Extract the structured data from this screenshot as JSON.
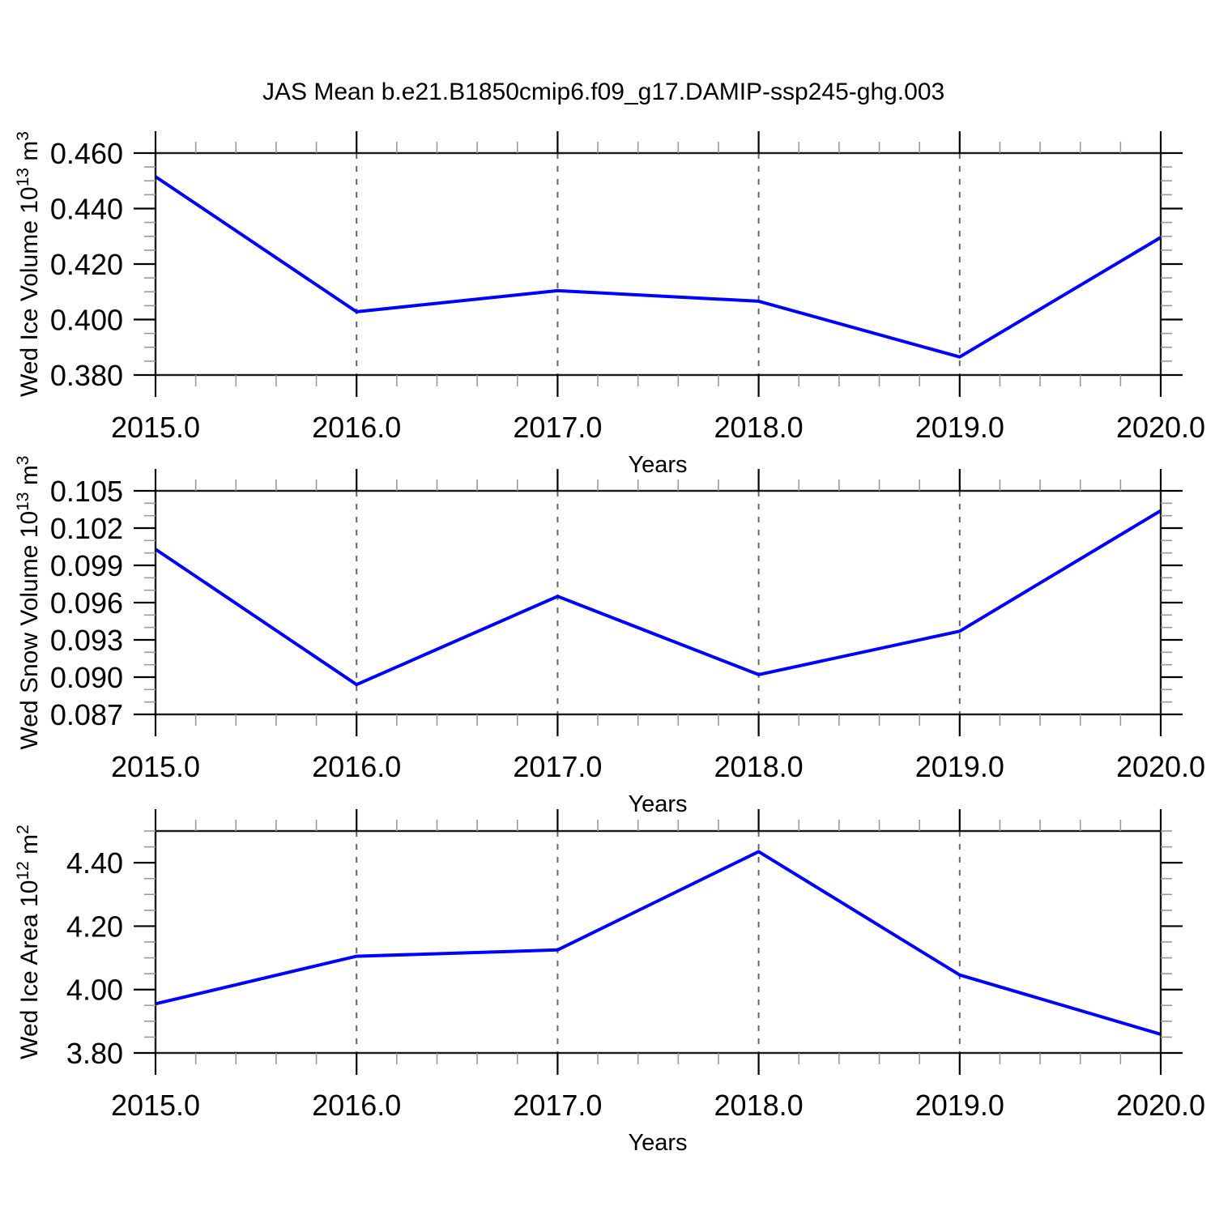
{
  "title": "JAS Mean b.e21.B1850cmip6.f09_g17.DAMIP-ssp245-ghg.003",
  "colors": {
    "line": "#0000ff",
    "frame": "#1a1a1a",
    "major_tick": "#000000",
    "minor_tick": "#999999",
    "grid": "#666666",
    "text": "#000000",
    "background": "#ffffff"
  },
  "x_axis": {
    "label": "Years",
    "lim": [
      2015.0,
      2020.0
    ],
    "tick_labels": [
      "2015.0",
      "2016.0",
      "2017.0",
      "2018.0",
      "2019.0",
      "2020.0"
    ],
    "tick_values": [
      2015,
      2016,
      2017,
      2018,
      2019,
      2020
    ],
    "minor_step": 0.2,
    "grid_values": [
      2016,
      2017,
      2018,
      2019
    ]
  },
  "chart_data": [
    {
      "type": "line",
      "series_name": "Wed Ice Volume",
      "ylabel": "Wed Ice Volume 10^13 m^3",
      "ylabel_rich": [
        {
          "t": "Wed Ice Volume 10"
        },
        {
          "t": "13",
          "sup": true
        },
        {
          "t": " m"
        },
        {
          "t": "3",
          "sup": true
        }
      ],
      "xlabel": "Years",
      "x": [
        2015,
        2016,
        2017,
        2018,
        2019,
        2020
      ],
      "values": [
        0.4515,
        0.4028,
        0.4104,
        0.4066,
        0.3865,
        0.4296
      ],
      "ylim": [
        0.38,
        0.46
      ],
      "ytick_labels": [
        "0.460",
        "0.440",
        "0.420",
        "0.400",
        "0.380"
      ],
      "ytick_values": [
        0.46,
        0.44,
        0.42,
        0.4,
        0.38
      ],
      "y_minor_step": 0.005,
      "grid": "vertical-dashed"
    },
    {
      "type": "line",
      "series_name": "Wed Snow Volume",
      "ylabel": "Wed Snow Volume 10^13 m^3",
      "ylabel_rich": [
        {
          "t": "Wed Snow Volume 10"
        },
        {
          "t": "13",
          "sup": true
        },
        {
          "t": " m"
        },
        {
          "t": "3",
          "sup": true
        }
      ],
      "xlabel": "Years",
      "x": [
        2015,
        2016,
        2017,
        2018,
        2019,
        2020
      ],
      "values": [
        0.1003,
        0.0894,
        0.0965,
        0.0902,
        0.0937,
        0.1034
      ],
      "ylim": [
        0.087,
        0.105
      ],
      "ytick_labels": [
        "0.105",
        "0.102",
        "0.099",
        "0.096",
        "0.093",
        "0.090",
        "0.087"
      ],
      "ytick_values": [
        0.105,
        0.102,
        0.099,
        0.096,
        0.093,
        0.09,
        0.087
      ],
      "y_minor_step": 0.001,
      "grid": "vertical-dashed"
    },
    {
      "type": "line",
      "series_name": "Wed Ice Area",
      "ylabel": "Wed Ice Area 10^12 m^2",
      "ylabel_rich": [
        {
          "t": "Wed Ice Area 10"
        },
        {
          "t": "12",
          "sup": true
        },
        {
          "t": " m"
        },
        {
          "t": "2",
          "sup": true
        }
      ],
      "xlabel": "Years",
      "x": [
        2015,
        2016,
        2017,
        2018,
        2019,
        2020
      ],
      "values": [
        3.955,
        4.105,
        4.125,
        4.435,
        4.046,
        3.859
      ],
      "ylim": [
        3.8,
        4.5
      ],
      "ytick_labels": [
        "4.40",
        "4.20",
        "4.00",
        "3.80"
      ],
      "ytick_values": [
        4.4,
        4.2,
        4.0,
        3.8
      ],
      "y_minor_step": 0.05,
      "grid": "vertical-dashed"
    }
  ]
}
